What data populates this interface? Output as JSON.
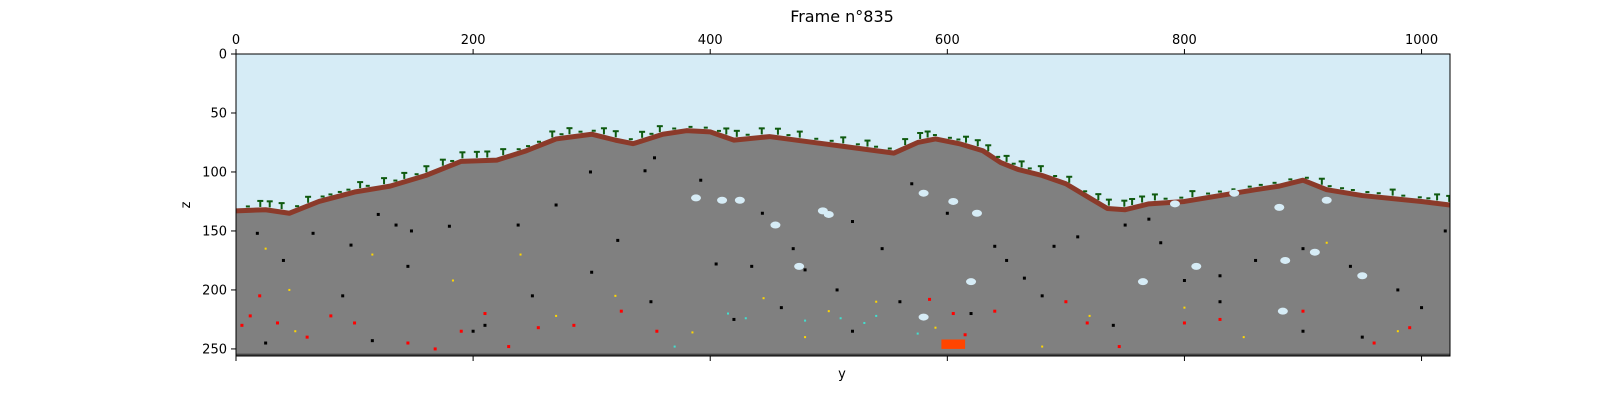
{
  "chart_data": {
    "type": "heatmap",
    "title": "Frame n°835",
    "xlabel": "y",
    "ylabel": "z",
    "x_range": [
      0,
      1024
    ],
    "y_range": [
      0,
      256
    ],
    "y_inverted": true,
    "x_ticks_top": [
      0,
      200,
      400,
      600,
      800,
      1000
    ],
    "x_ticks_bottom": [
      0,
      200,
      400,
      600,
      800,
      1000
    ],
    "y_ticks": [
      0,
      50,
      100,
      150,
      200,
      250
    ],
    "grid": false,
    "legend": "none",
    "colors": {
      "sky": "#d6ecf6",
      "stone": "#808080",
      "dirt": "#8b3a2a",
      "grass": "#0f5a0f",
      "cave": "#000000",
      "ice": "#d6ecf6",
      "lava": "#ff4500",
      "red_ore": "#ff0000",
      "gold_ore": "#ffd700",
      "diamond_ore": "#40e0d0",
      "bedrock": "#444444"
    },
    "terrain_surface": [
      [
        0,
        133
      ],
      [
        25,
        132
      ],
      [
        45,
        135
      ],
      [
        70,
        125
      ],
      [
        100,
        117
      ],
      [
        130,
        112
      ],
      [
        160,
        103
      ],
      [
        190,
        91
      ],
      [
        220,
        90
      ],
      [
        245,
        82
      ],
      [
        270,
        72
      ],
      [
        300,
        68
      ],
      [
        320,
        73
      ],
      [
        335,
        76
      ],
      [
        360,
        68
      ],
      [
        380,
        65
      ],
      [
        400,
        66
      ],
      [
        420,
        73
      ],
      [
        450,
        70
      ],
      [
        480,
        74
      ],
      [
        510,
        78
      ],
      [
        540,
        82
      ],
      [
        555,
        84
      ],
      [
        575,
        75
      ],
      [
        590,
        72
      ],
      [
        610,
        76
      ],
      [
        630,
        82
      ],
      [
        645,
        92
      ],
      [
        660,
        98
      ],
      [
        680,
        103
      ],
      [
        700,
        110
      ],
      [
        720,
        122
      ],
      [
        735,
        131
      ],
      [
        750,
        132
      ],
      [
        770,
        127
      ],
      [
        800,
        125
      ],
      [
        830,
        120
      ],
      [
        860,
        115
      ],
      [
        880,
        112
      ],
      [
        900,
        107
      ],
      [
        920,
        115
      ],
      [
        950,
        120
      ],
      [
        980,
        123
      ],
      [
        1000,
        125
      ],
      [
        1024,
        128
      ]
    ],
    "lava_pool": {
      "x": [
        595,
        615
      ],
      "z": [
        242,
        250
      ]
    },
    "ice_pockets": [
      [
        388,
        122
      ],
      [
        410,
        124
      ],
      [
        425,
        124
      ],
      [
        455,
        145
      ],
      [
        475,
        180
      ],
      [
        495,
        133
      ],
      [
        500,
        136
      ],
      [
        580,
        118
      ],
      [
        605,
        125
      ],
      [
        625,
        135
      ],
      [
        620,
        193
      ],
      [
        580,
        223
      ],
      [
        792,
        127
      ],
      [
        810,
        180
      ],
      [
        842,
        118
      ],
      [
        880,
        130
      ],
      [
        885,
        175
      ],
      [
        910,
        168
      ],
      [
        920,
        124
      ],
      [
        950,
        188
      ],
      [
        883,
        218
      ],
      [
        765,
        193
      ]
    ],
    "cave_specks": [
      [
        18,
        152
      ],
      [
        65,
        152
      ],
      [
        97,
        162
      ],
      [
        120,
        136
      ],
      [
        135,
        145
      ],
      [
        148,
        150
      ],
      [
        180,
        146
      ],
      [
        238,
        145
      ],
      [
        270,
        128
      ],
      [
        299,
        100
      ],
      [
        322,
        158
      ],
      [
        345,
        99
      ],
      [
        353,
        88
      ],
      [
        392,
        107
      ],
      [
        405,
        178
      ],
      [
        435,
        180
      ],
      [
        444,
        135
      ],
      [
        470,
        165
      ],
      [
        480,
        183
      ],
      [
        507,
        200
      ],
      [
        520,
        142
      ],
      [
        545,
        165
      ],
      [
        570,
        110
      ],
      [
        600,
        135
      ],
      [
        640,
        163
      ],
      [
        650,
        175
      ],
      [
        665,
        190
      ],
      [
        690,
        163
      ],
      [
        710,
        155
      ],
      [
        750,
        145
      ],
      [
        770,
        140
      ],
      [
        780,
        160
      ],
      [
        800,
        192
      ],
      [
        830,
        188
      ],
      [
        860,
        175
      ],
      [
        900,
        165
      ],
      [
        940,
        180
      ],
      [
        980,
        200
      ],
      [
        1020,
        150
      ],
      [
        40,
        175
      ],
      [
        90,
        205
      ],
      [
        145,
        180
      ],
      [
        210,
        230
      ],
      [
        250,
        205
      ],
      [
        300,
        185
      ],
      [
        350,
        210
      ],
      [
        420,
        225
      ],
      [
        460,
        215
      ],
      [
        520,
        235
      ],
      [
        560,
        210
      ],
      [
        620,
        220
      ],
      [
        680,
        205
      ],
      [
        740,
        230
      ],
      [
        830,
        210
      ],
      [
        900,
        235
      ],
      [
        950,
        240
      ],
      [
        1000,
        215
      ],
      [
        25,
        245
      ],
      [
        115,
        243
      ],
      [
        200,
        235
      ]
    ],
    "red_ore_specks": [
      [
        5,
        230
      ],
      [
        12,
        222
      ],
      [
        20,
        205
      ],
      [
        35,
        228
      ],
      [
        60,
        240
      ],
      [
        80,
        222
      ],
      [
        100,
        228
      ],
      [
        145,
        245
      ],
      [
        168,
        250
      ],
      [
        190,
        235
      ],
      [
        210,
        220
      ],
      [
        230,
        248
      ],
      [
        255,
        232
      ],
      [
        285,
        230
      ],
      [
        325,
        218
      ],
      [
        355,
        235
      ],
      [
        585,
        208
      ],
      [
        605,
        220
      ],
      [
        615,
        238
      ],
      [
        640,
        218
      ],
      [
        700,
        210
      ],
      [
        718,
        228
      ],
      [
        745,
        248
      ],
      [
        800,
        228
      ],
      [
        830,
        225
      ],
      [
        900,
        218
      ],
      [
        960,
        245
      ],
      [
        990,
        232
      ]
    ],
    "gold_ore_specks": [
      [
        25,
        165
      ],
      [
        45,
        200
      ],
      [
        115,
        170
      ],
      [
        183,
        192
      ],
      [
        240,
        170
      ],
      [
        270,
        222
      ],
      [
        320,
        205
      ],
      [
        385,
        236
      ],
      [
        445,
        207
      ],
      [
        480,
        240
      ],
      [
        500,
        218
      ],
      [
        540,
        210
      ],
      [
        590,
        232
      ],
      [
        680,
        248
      ],
      [
        720,
        222
      ],
      [
        800,
        215
      ],
      [
        850,
        240
      ],
      [
        920,
        160
      ],
      [
        980,
        235
      ],
      [
        50,
        235
      ]
    ],
    "diamond_ore_specks": [
      [
        370,
        248
      ],
      [
        415,
        220
      ],
      [
        430,
        224
      ],
      [
        480,
        226
      ],
      [
        510,
        224
      ],
      [
        530,
        228
      ],
      [
        540,
        222
      ],
      [
        575,
        237
      ]
    ]
  }
}
